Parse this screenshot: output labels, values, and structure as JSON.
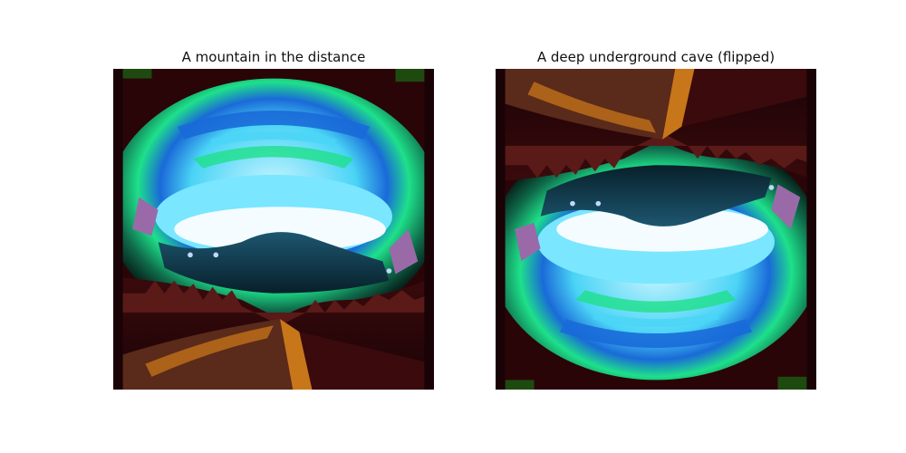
{
  "figure": {
    "panels": [
      {
        "title": "A mountain in the distance",
        "image": "pixel-art cave opening viewing a distant snowy mountain"
      },
      {
        "title": "A deep underground cave (flipped)",
        "image": "same pixel-art scene flipped vertically"
      }
    ]
  },
  "colors": {
    "rock_dark": "#2a0508",
    "rock_mid": "#5a1a18",
    "rock_brown": "#7a3a22",
    "orange": "#c8761a",
    "grass": "#1e4a10",
    "teal_glow": "#1ee08a",
    "sky_blue": "#4ad4f6",
    "deep_blue": "#1a6ad8",
    "snow": "#f4fcff",
    "mountain": "#123a4e",
    "crystal": "#9a6aa8"
  }
}
